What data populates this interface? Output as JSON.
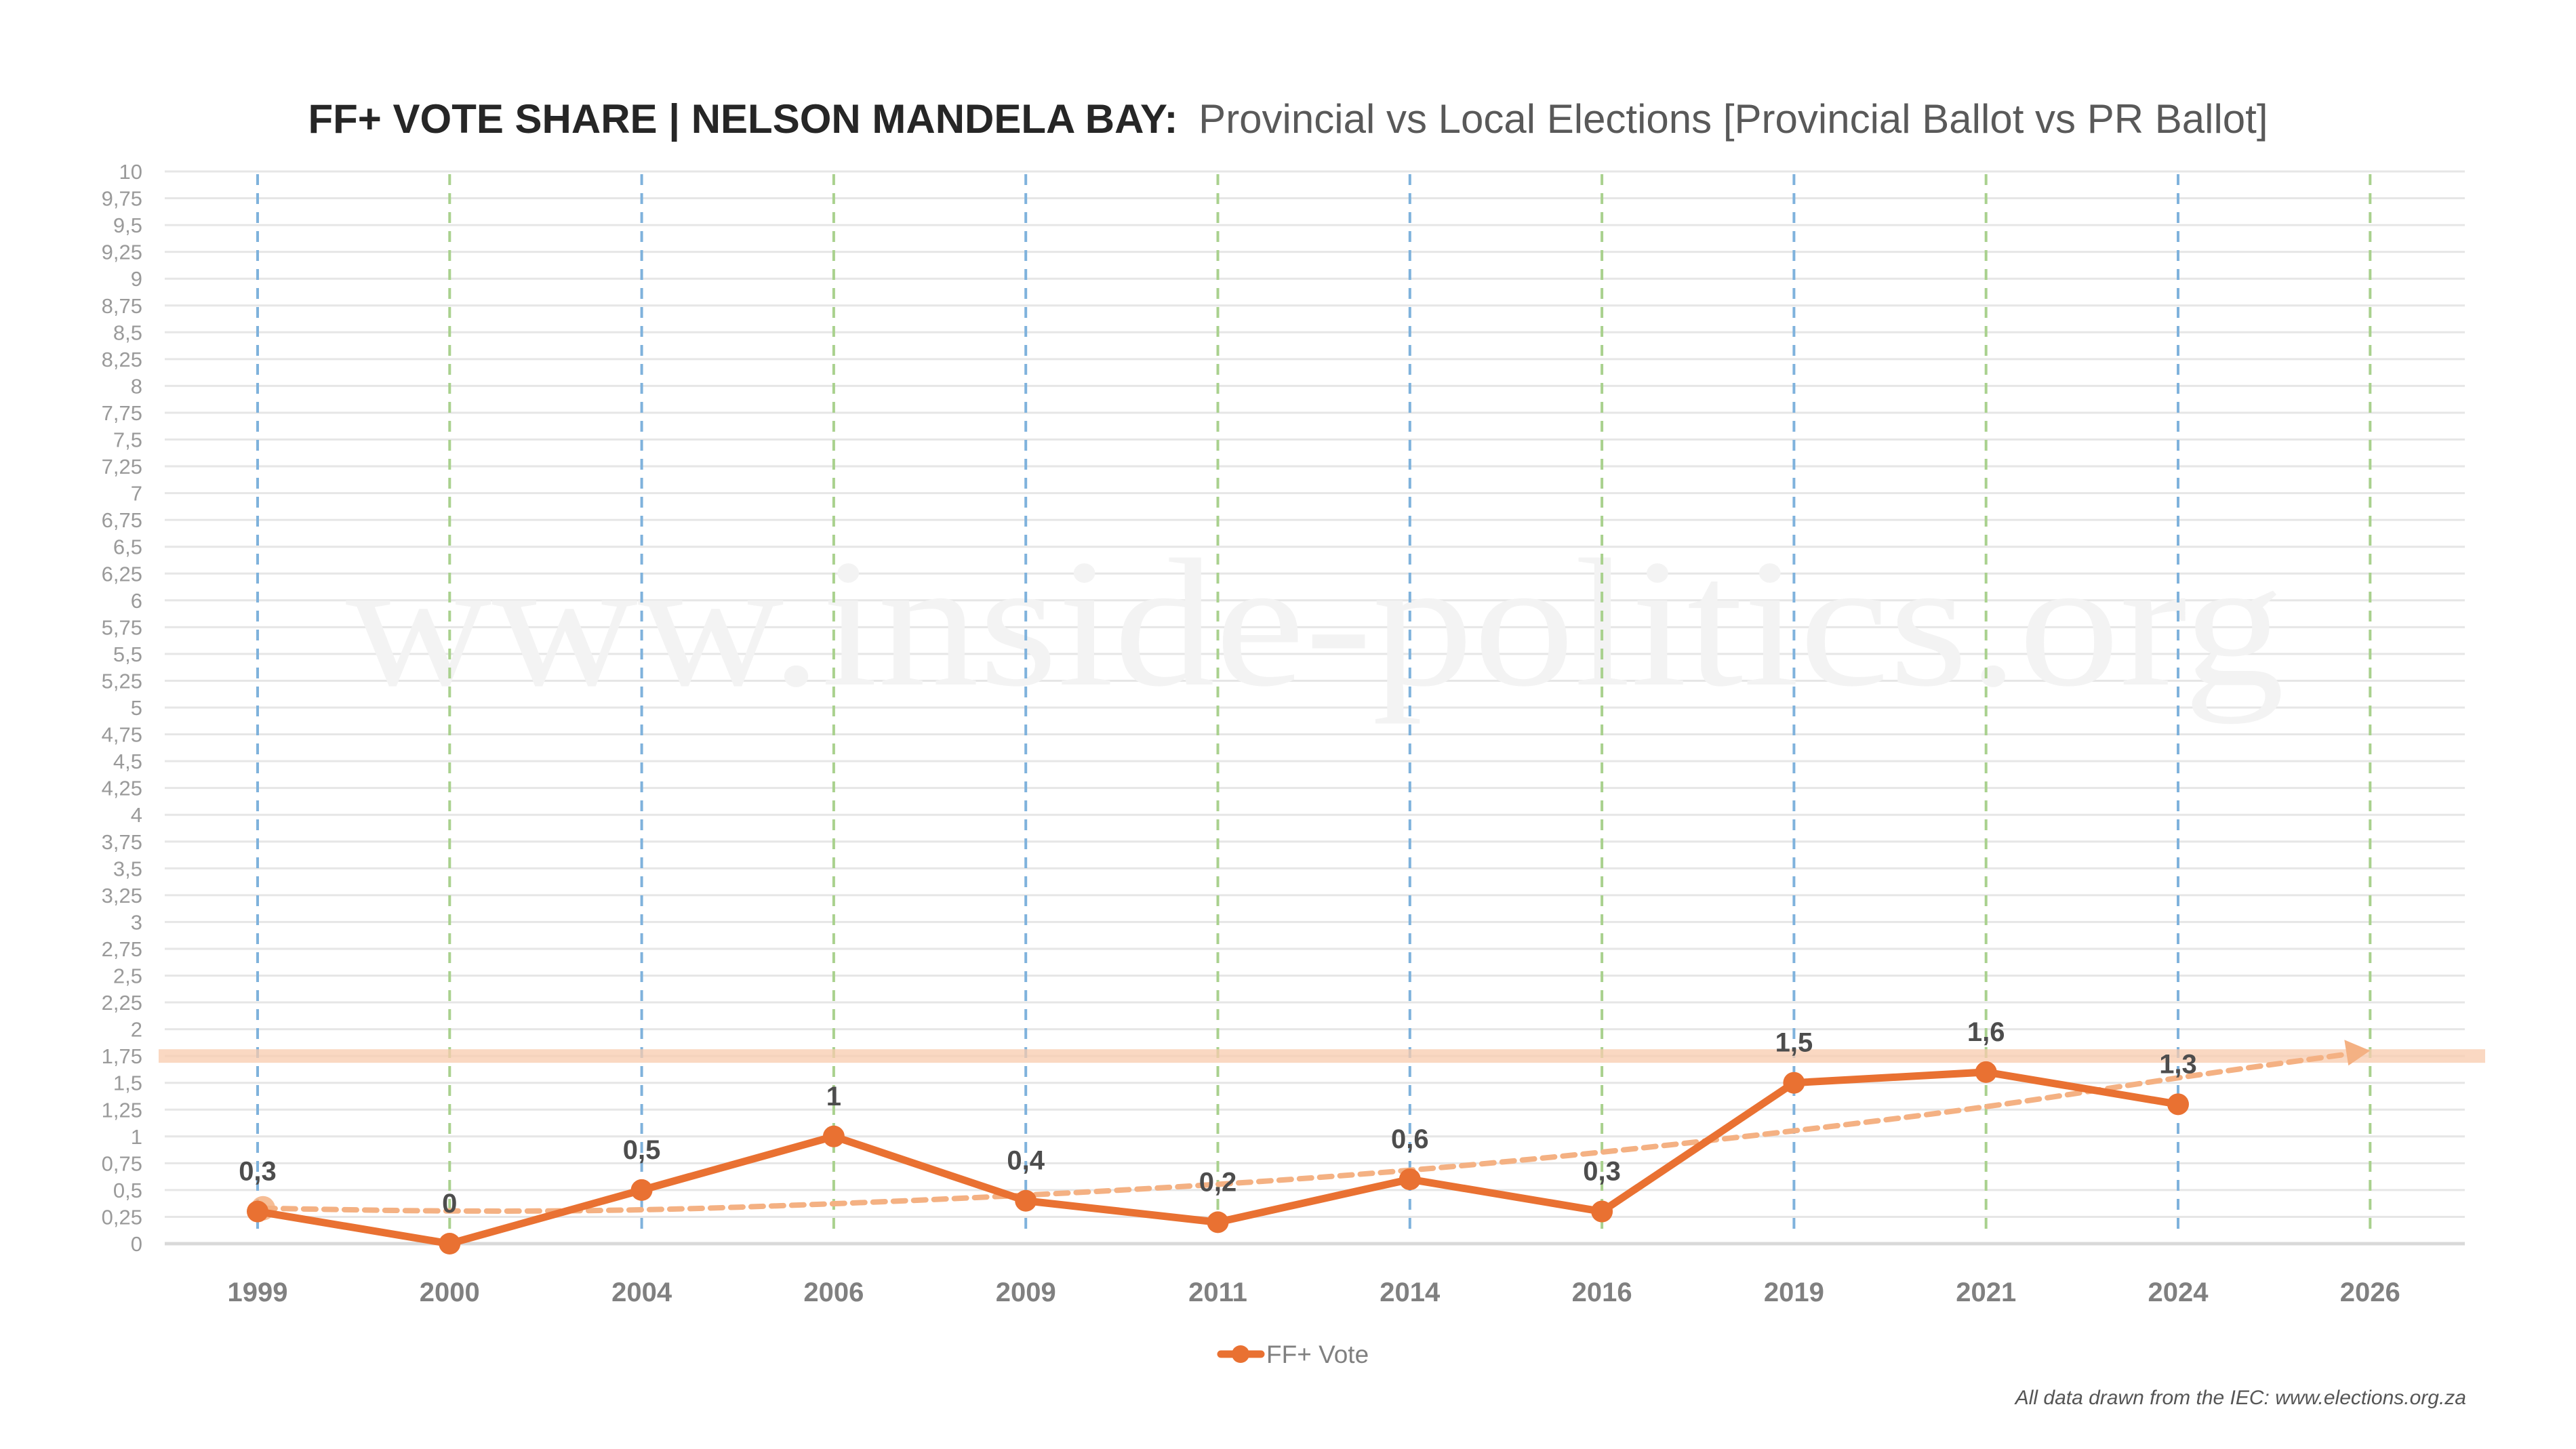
{
  "chart_data": {
    "type": "line",
    "title": {
      "bold": "FF+ VOTE SHARE | NELSON MANDELA BAY:",
      "light": "Provincial vs Local Elections [Provincial Ballot vs PR Ballot]"
    },
    "xlabel": "",
    "ylabel": "",
    "categories": [
      "1999",
      "2000",
      "2004",
      "2006",
      "2009",
      "2011",
      "2014",
      "2016",
      "2019",
      "2021",
      "2024",
      "2026"
    ],
    "category_types": [
      "provincial",
      "local",
      "provincial",
      "local",
      "provincial",
      "local",
      "provincial",
      "local",
      "provincial",
      "local",
      "provincial",
      "local"
    ],
    "series": [
      {
        "name": "FF+ Vote",
        "color": "#E97132",
        "values": [
          0.3,
          0,
          0.5,
          1,
          0.4,
          0.2,
          0.6,
          0.3,
          1.5,
          1.6,
          1.3,
          null
        ],
        "labels": [
          "0,3",
          "0",
          "0,5",
          "1",
          "0,4",
          "0,2",
          "0,6",
          "0,3",
          "1,5",
          "1,6",
          "1,3",
          ""
        ]
      }
    ],
    "trend": {
      "name": "trend-arrow",
      "color": "#F4B183",
      "style": "dashed-arrow",
      "values": [
        0.33,
        0.3,
        0.31,
        0.37,
        0.45,
        0.55,
        0.68,
        0.85,
        1.05,
        1.27,
        1.55,
        1.8
      ]
    },
    "reference_band": {
      "value": 1.75,
      "color": "#F8CBAD"
    },
    "ylim": [
      0,
      10
    ],
    "yticks": [
      0,
      0.25,
      0.5,
      0.75,
      1,
      1.25,
      1.5,
      1.75,
      2,
      2.25,
      2.5,
      2.75,
      3,
      3.25,
      3.5,
      3.75,
      4,
      4.25,
      4.5,
      4.75,
      5,
      5.25,
      5.5,
      5.75,
      6,
      6.25,
      6.5,
      6.75,
      7,
      7.25,
      7.5,
      7.75,
      8,
      8.25,
      8.5,
      8.75,
      9,
      9.25,
      9.5,
      9.75,
      10
    ],
    "ytick_labels": [
      "0",
      "0,25",
      "0,5",
      "0,75",
      "1",
      "1,25",
      "1,5",
      "1,75",
      "2",
      "2,25",
      "2,5",
      "2,75",
      "3",
      "3,25",
      "3,5",
      "3,75",
      "4",
      "4,25",
      "4,5",
      "4,75",
      "5",
      "5,25",
      "5,5",
      "5,75",
      "6",
      "6,25",
      "6,5",
      "6,75",
      "7",
      "7,25",
      "7,5",
      "7,75",
      "8",
      "8,25",
      "8,5",
      "8,75",
      "9",
      "9,25",
      "9,5",
      "9,75",
      "10"
    ],
    "grid": true,
    "vertical_markers": {
      "provincial_color": "#7FB2DC",
      "local_color": "#A9D18E",
      "style": "dashed"
    },
    "legend": {
      "position": "bottom-center",
      "entries": [
        "FF+ Vote"
      ]
    }
  },
  "watermark": "www.inside-politics.org",
  "source_note": "All data drawn from the IEC: www.elections.org.za"
}
